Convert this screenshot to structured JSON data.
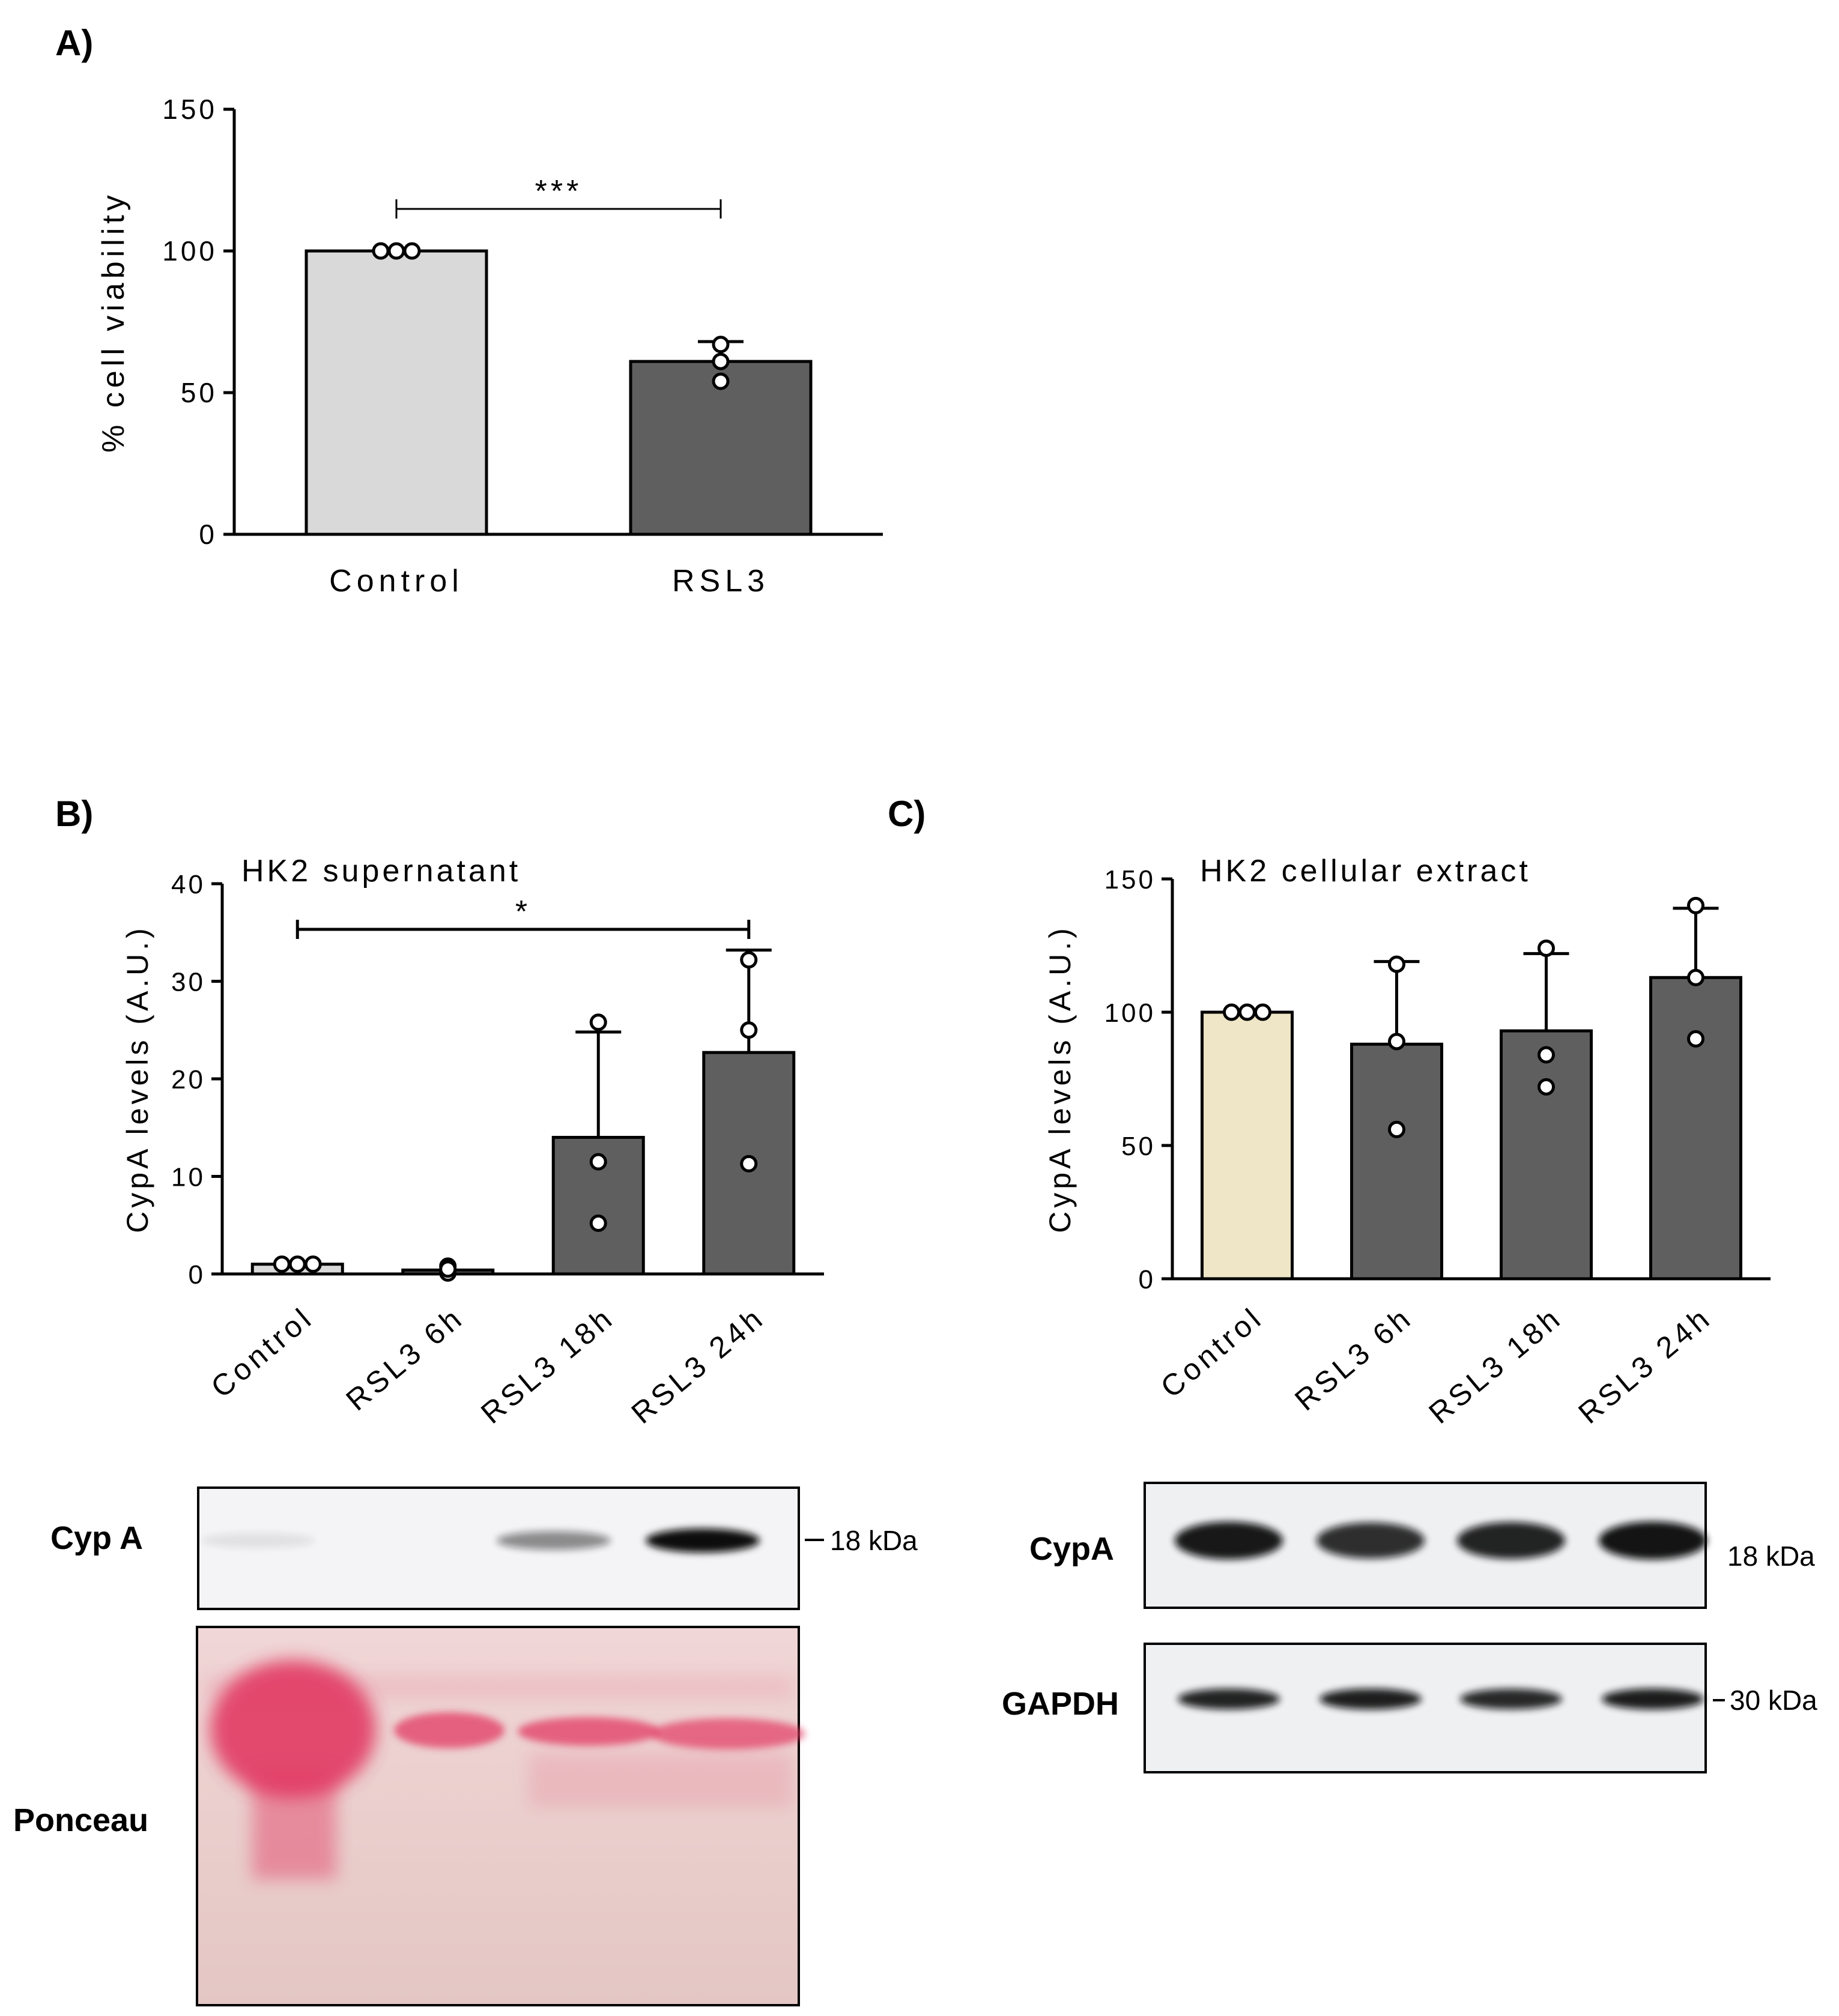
{
  "panels": {
    "A": {
      "label": "A)"
    },
    "B": {
      "label": "B)"
    },
    "C": {
      "label": "C)"
    }
  },
  "chart_data": [
    {
      "id": "A",
      "type": "bar",
      "title": "",
      "ylabel": "% cell viability",
      "xlabel": "",
      "ylim": [
        0,
        150
      ],
      "yticks": [
        0,
        50,
        100,
        150
      ],
      "categories": [
        "Control",
        "RSL3"
      ],
      "values": [
        100,
        61
      ],
      "errors": [
        0,
        7
      ],
      "points": [
        [
          100,
          100,
          100
        ],
        [
          67,
          61,
          54
        ]
      ],
      "bar_colors": [
        "#d9d9d9",
        "#5f5f5f"
      ],
      "significance": [
        {
          "from": 0,
          "to": 1,
          "label": "***"
        }
      ]
    },
    {
      "id": "B",
      "type": "bar",
      "title": "HK2 supernatant",
      "ylabel": "CypA levels (A.U.)",
      "xlabel": "",
      "ylim": [
        0,
        40
      ],
      "yticks": [
        0,
        10,
        20,
        30,
        40
      ],
      "categories": [
        "Control",
        "RSL3 6h",
        "RSL3 18h",
        "RSL3 24h"
      ],
      "values": [
        1,
        0.4,
        14,
        22.7
      ],
      "errors": [
        0,
        0,
        10.8,
        10.5
      ],
      "points": [
        [
          1,
          1,
          1
        ],
        [
          0.8,
          0.1,
          0.5
        ],
        [
          25.8,
          11.5,
          5.2
        ],
        [
          32.2,
          25,
          11.3
        ]
      ],
      "bar_colors": [
        "#d9d9d9",
        "#5f5f5f",
        "#5f5f5f",
        "#5f5f5f"
      ],
      "significance": [
        {
          "from": 0,
          "to": 3,
          "label": "*"
        }
      ]
    },
    {
      "id": "C",
      "type": "bar",
      "title": "HK2 cellular extract",
      "ylabel": "CypA levels (A.U.)",
      "xlabel": "",
      "ylim": [
        0,
        150
      ],
      "yticks": [
        0,
        50,
        100,
        150
      ],
      "categories": [
        "Control",
        "RSL3 6h",
        "RSL3 18h",
        "RSL3 24h"
      ],
      "values": [
        100,
        88,
        93,
        113
      ],
      "errors": [
        0,
        31,
        29,
        26
      ],
      "points": [
        [
          100,
          100,
          100
        ],
        [
          118,
          89,
          56
        ],
        [
          124,
          84,
          72
        ],
        [
          140,
          113,
          90
        ]
      ],
      "bar_colors": [
        "#efe6c8",
        "#5f5f5f",
        "#5f5f5f",
        "#5f5f5f"
      ],
      "significance": []
    }
  ],
  "blots": {
    "B": {
      "cypA_label": "Cyp A",
      "marker_18": "18 kDa",
      "ponceau_label": "Ponceau",
      "cypA_band_intensity": [
        0.08,
        0.02,
        0.45,
        1.0
      ],
      "band_color": "#0a0a0a",
      "ponceau_color": "#e23a64"
    },
    "C": {
      "cypA_label": "CypA",
      "gapdh_label": "GAPDH",
      "marker_18": "18 kDa",
      "marker_30": "30 kDa",
      "cypA_band_intensity": [
        0.95,
        0.85,
        0.9,
        0.97
      ],
      "gapdh_band_intensity": [
        0.9,
        0.92,
        0.88,
        0.93
      ],
      "band_color": "#0d0d0d"
    }
  }
}
